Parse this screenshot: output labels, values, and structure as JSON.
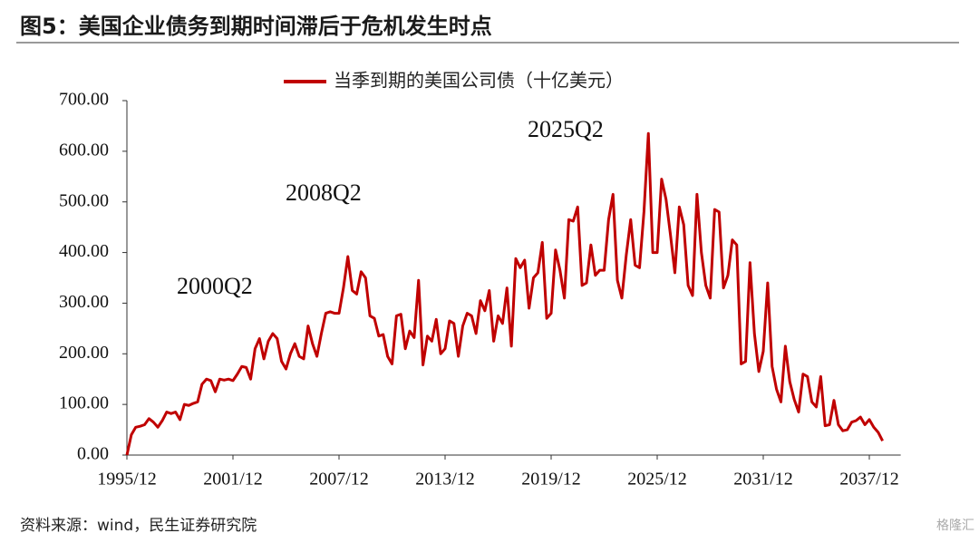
{
  "chart_data": {
    "type": "line",
    "title": "图5：美国企业债务到期时间滞后于危机发生时点",
    "source": "资料来源：wind，民生证券研究院",
    "watermark": "格隆汇",
    "annotations": [
      "2000Q2",
      "2008Q2",
      "2025Q2"
    ],
    "categories": [
      "1995/12",
      null,
      null,
      null,
      null,
      null,
      null,
      null,
      null,
      null,
      null,
      null,
      null,
      null,
      null,
      null,
      null,
      null,
      null,
      null,
      null,
      null,
      null,
      null,
      "2001/12",
      null,
      null,
      null,
      null,
      null,
      null,
      null,
      null,
      null,
      null,
      null,
      null,
      null,
      null,
      null,
      null,
      null,
      null,
      null,
      null,
      null,
      null,
      null,
      "2007/12",
      null,
      null,
      null,
      null,
      null,
      null,
      null,
      null,
      null,
      null,
      null,
      null,
      null,
      null,
      null,
      null,
      null,
      null,
      null,
      null,
      null,
      null,
      null,
      "2013/12",
      null,
      null,
      null,
      null,
      null,
      null,
      null,
      null,
      null,
      null,
      null,
      null,
      null,
      null,
      null,
      null,
      null,
      null,
      null,
      null,
      null,
      null,
      null,
      "2019/12",
      null,
      null,
      null,
      null,
      null,
      null,
      null,
      null,
      null,
      null,
      null,
      null,
      null,
      null,
      null,
      null,
      null,
      null,
      null,
      null,
      null,
      null,
      null,
      "2025/12",
      null,
      null,
      null,
      null,
      null,
      null,
      null,
      null,
      null,
      null,
      null,
      null,
      null,
      null,
      null,
      null,
      null,
      null,
      null,
      null,
      null,
      null,
      null,
      "2031/12",
      null,
      null,
      null,
      null,
      null,
      null,
      null,
      null,
      null,
      null,
      null,
      null,
      null,
      null,
      null,
      null,
      null,
      null,
      null,
      null,
      null,
      null,
      null,
      "2037/12",
      null,
      null,
      null
    ],
    "series": [
      {
        "name": "当季到期的美国公司债（十亿美元）",
        "color": "#c00000",
        "values": [
          0,
          40,
          55,
          57,
          60,
          72,
          65,
          55,
          68,
          85,
          82,
          85,
          70,
          100,
          98,
          102,
          105,
          140,
          150,
          147,
          125,
          150,
          148,
          150,
          147,
          160,
          175,
          173,
          150,
          210,
          230,
          190,
          225,
          240,
          230,
          185,
          170,
          200,
          220,
          195,
          190,
          255,
          220,
          195,
          240,
          280,
          283,
          280,
          280,
          330,
          392,
          325,
          318,
          362,
          350,
          275,
          270,
          235,
          238,
          195,
          180,
          275,
          278,
          210,
          245,
          232,
          345,
          178,
          235,
          225,
          268,
          200,
          210,
          265,
          260,
          195,
          255,
          280,
          275,
          240,
          305,
          285,
          325,
          225,
          275,
          260,
          330,
          215,
          388,
          370,
          385,
          290,
          350,
          360,
          420,
          270,
          280,
          405,
          365,
          310,
          465,
          462,
          490,
          335,
          340,
          415,
          355,
          365,
          365,
          465,
          515,
          345,
          310,
          395,
          465,
          375,
          370,
          480,
          635,
          400,
          400,
          545,
          505,
          435,
          360,
          490,
          455,
          335,
          315,
          515,
          400,
          335,
          310,
          485,
          480,
          330,
          355,
          425,
          415,
          180,
          185,
          380,
          240,
          165,
          205,
          340,
          175,
          130,
          105,
          215,
          145,
          110,
          85,
          160,
          155,
          105,
          95,
          155,
          58,
          60,
          108,
          60,
          48,
          50,
          65,
          68,
          75,
          60,
          70,
          55,
          45,
          28
        ]
      }
    ],
    "ylim": [
      0,
      700
    ],
    "yticks": [
      {
        "value": 0,
        "label": "0.00"
      },
      {
        "value": 100,
        "label": "100.00"
      },
      {
        "value": 200,
        "label": "200.00"
      },
      {
        "value": 300,
        "label": "300.00"
      },
      {
        "value": 400,
        "label": "400.00"
      },
      {
        "value": 500,
        "label": "500.00"
      },
      {
        "value": 600,
        "label": "600.00"
      },
      {
        "value": 700,
        "label": "700.00"
      }
    ],
    "grid": false,
    "legend": "top"
  }
}
